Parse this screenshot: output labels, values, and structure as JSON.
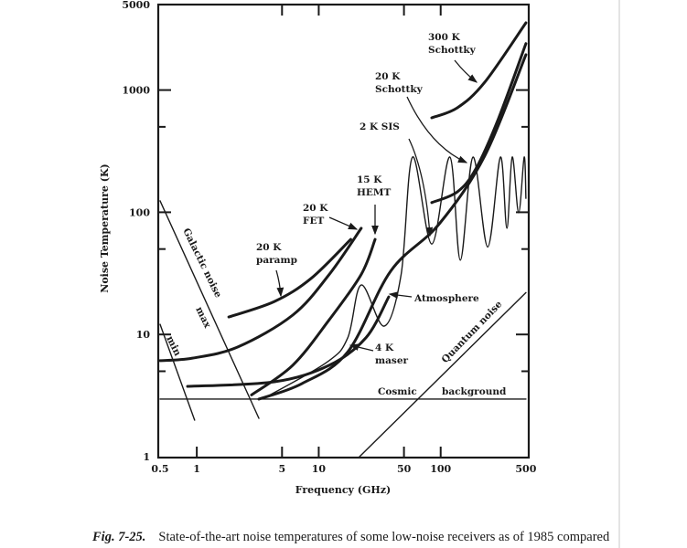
{
  "chart_data": {
    "type": "line",
    "title": "",
    "xlabel": "Frequency (GHz)",
    "ylabel": "Noise Temperature (K)",
    "xscale": "log",
    "yscale": "log",
    "xlim": [
      0.5,
      500
    ],
    "ylim": [
      1,
      5000
    ],
    "grid": false,
    "x_ticks": [
      {
        "value": 0.5,
        "label": "0.5"
      },
      {
        "value": 1,
        "label": "1"
      },
      {
        "value": 5,
        "label": "5"
      },
      {
        "value": 10,
        "label": "10"
      },
      {
        "value": 50,
        "label": "50"
      },
      {
        "value": 100,
        "label": "100"
      },
      {
        "value": 500,
        "label": "500"
      }
    ],
    "y_ticks": [
      {
        "value": 1,
        "label": "1"
      },
      {
        "value": 10,
        "label": "10"
      },
      {
        "value": 100,
        "label": "100"
      },
      {
        "value": 1000,
        "label": "1000"
      },
      {
        "value": 5000,
        "label": "5000"
      }
    ],
    "y_minor_ticks": [
      5,
      50,
      500
    ],
    "series": [
      {
        "name": "20 K paramp",
        "weight": "thick",
        "points": [
          [
            1.83,
            13.9
          ],
          [
            4.33,
            18.6
          ],
          [
            8.64,
            28.7
          ],
          [
            18.3,
            60
          ]
        ]
      },
      {
        "name": "20 K FET",
        "weight": "thick",
        "points": [
          [
            0.5,
            6.1
          ],
          [
            0.92,
            6.4
          ],
          [
            2.17,
            7.9
          ],
          [
            6.12,
            14.4
          ],
          [
            12.2,
            31
          ],
          [
            22.3,
            74
          ]
        ]
      },
      {
        "name": "15 K HEMT",
        "weight": "thick",
        "points": [
          [
            2.81,
            3.2
          ],
          [
            6.12,
            5.6
          ],
          [
            12.2,
            13.2
          ],
          [
            22.3,
            31
          ],
          [
            29,
            60
          ]
        ]
      },
      {
        "name": "4 K maser",
        "weight": "thick",
        "points": [
          [
            0.84,
            3.76
          ],
          [
            4.33,
            4.1
          ],
          [
            12.2,
            5.6
          ],
          [
            24.4,
            9.4
          ],
          [
            37.5,
            20.3
          ]
        ]
      },
      {
        "name": "2 K SIS",
        "weight": "thick",
        "points": [
          [
            3.23,
            2.96
          ],
          [
            7.27,
            3.96
          ],
          [
            17.3,
            7.2
          ],
          [
            38.9,
            33
          ],
          [
            97,
            80
          ],
          [
            230,
            290
          ],
          [
            500,
            1945
          ]
        ]
      },
      {
        "name": "20 K Schottky",
        "weight": "thick",
        "points": [
          [
            84.5,
            120
          ],
          [
            137,
            147
          ],
          [
            194,
            226
          ],
          [
            298,
            585
          ],
          [
            500,
            2400
          ]
        ]
      },
      {
        "name": "300 K Schottky",
        "weight": "thick",
        "points": [
          [
            84.5,
            593
          ],
          [
            137,
            716
          ],
          [
            230,
            1160
          ],
          [
            500,
            3550
          ]
        ]
      },
      {
        "name": "Atmosphere",
        "weight": "thin",
        "points": [
          [
            3.46,
            2.96
          ],
          [
            11.6,
            5.9
          ],
          [
            17.3,
            9.4
          ],
          [
            22.3,
            25.4
          ],
          [
            34.4,
            11.7
          ],
          [
            47.4,
            31
          ],
          [
            58.8,
            283
          ],
          [
            84.5,
            55
          ],
          [
            119,
            283
          ],
          [
            145,
            40.5
          ],
          [
            184,
            283
          ],
          [
            243,
            52
          ],
          [
            309,
            283
          ],
          [
            349,
            74
          ],
          [
            386,
            283
          ],
          [
            436,
            99
          ],
          [
            484,
            283
          ],
          [
            500,
            130
          ]
        ]
      },
      {
        "name": "Galactic noise max",
        "weight": "thin",
        "straight": true,
        "points": [
          [
            0.5,
            124
          ],
          [
            3.23,
            2.06
          ]
        ]
      },
      {
        "name": "Galactic noise min",
        "weight": "thin",
        "straight": true,
        "points": [
          [
            0.5,
            12.1
          ],
          [
            0.96,
            1.99
          ]
        ]
      },
      {
        "name": "Quantum noise",
        "weight": "thin",
        "straight": true,
        "points": [
          [
            21.6,
            1.0
          ],
          [
            500,
            22
          ]
        ]
      },
      {
        "name": "Cosmic background",
        "weight": "thin",
        "straight": true,
        "points": [
          [
            0.5,
            2.96
          ],
          [
            500,
            2.96
          ]
        ]
      }
    ],
    "annotations": {
      "schottky300": [
        "300 K",
        "Schottky"
      ],
      "schottky20": [
        "20 K",
        "Schottky"
      ],
      "sis": "2 K SIS",
      "hemt": [
        "15 K",
        "HEMT"
      ],
      "fet": [
        "20 K",
        "FET"
      ],
      "paramp": [
        "20 K",
        "paramp"
      ],
      "atmosphere": "Atmosphere",
      "maser": [
        "4 K",
        "maser"
      ],
      "galactic": "Galactic noise",
      "max": "max",
      "min": "min",
      "quantum": "Quantum noise",
      "cosmic": "Cosmic",
      "background": "background"
    }
  },
  "caption": {
    "label": "Fig. 7-25.",
    "text": "State-of-the-art noise temperatures of some low-noise receivers as of 1985 compared"
  },
  "colors": {
    "ink": "#1a1a1a",
    "edge": "#e4e4e4"
  }
}
